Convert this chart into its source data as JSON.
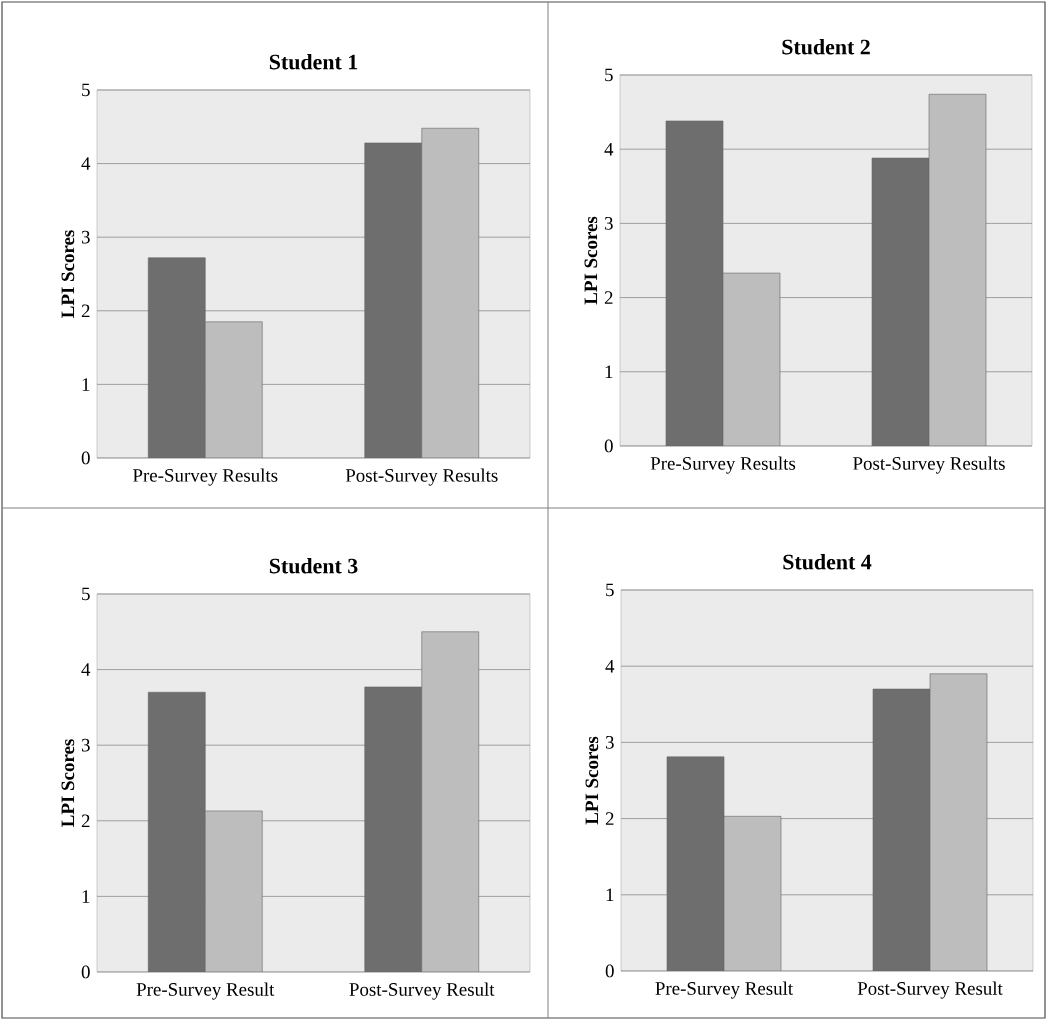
{
  "chart_data": [
    {
      "type": "bar",
      "title": "Student 1",
      "ylabel": "LPI Scores",
      "categories": [
        "Pre-Survey Results",
        "Post-Survey Results"
      ],
      "series": [
        {
          "color": "#6e6e6e",
          "values": [
            2.72,
            4.28
          ]
        },
        {
          "color": "#bdbdbd",
          "values": [
            1.85,
            4.48
          ]
        }
      ],
      "ylim": [
        0,
        5
      ],
      "yticks": [
        0,
        1,
        2,
        3,
        4,
        5
      ],
      "grid": "y"
    },
    {
      "type": "bar",
      "title": "Student 2",
      "ylabel": "LPI Scores",
      "categories": [
        "Pre-Survey Results",
        "Post-Survey Results"
      ],
      "series": [
        {
          "color": "#6e6e6e",
          "values": [
            4.38,
            3.88
          ]
        },
        {
          "color": "#bdbdbd",
          "values": [
            2.33,
            4.74
          ]
        }
      ],
      "ylim": [
        0,
        5
      ],
      "yticks": [
        0,
        1,
        2,
        3,
        4,
        5
      ],
      "grid": "y"
    },
    {
      "type": "bar",
      "title": "Student 3",
      "ylabel": "LPI Scores",
      "categories": [
        "Pre-Survey Result",
        "Post-Survey Result"
      ],
      "series": [
        {
          "color": "#6e6e6e",
          "values": [
            3.7,
            3.77
          ]
        },
        {
          "color": "#bdbdbd",
          "values": [
            2.13,
            4.5
          ]
        }
      ],
      "ylim": [
        0,
        5
      ],
      "yticks": [
        0,
        1,
        2,
        3,
        4,
        5
      ],
      "grid": "y"
    },
    {
      "type": "bar",
      "title": "Student 4",
      "ylabel": "LPI Scores",
      "categories": [
        "Pre-Survey Result",
        "Post-Survey Result"
      ],
      "series": [
        {
          "color": "#6e6e6e",
          "values": [
            2.81,
            3.7
          ]
        },
        {
          "color": "#bdbdbd",
          "values": [
            2.03,
            3.9
          ]
        }
      ],
      "ylim": [
        0,
        5
      ],
      "yticks": [
        0,
        1,
        2,
        3,
        4,
        5
      ],
      "grid": "y"
    }
  ]
}
